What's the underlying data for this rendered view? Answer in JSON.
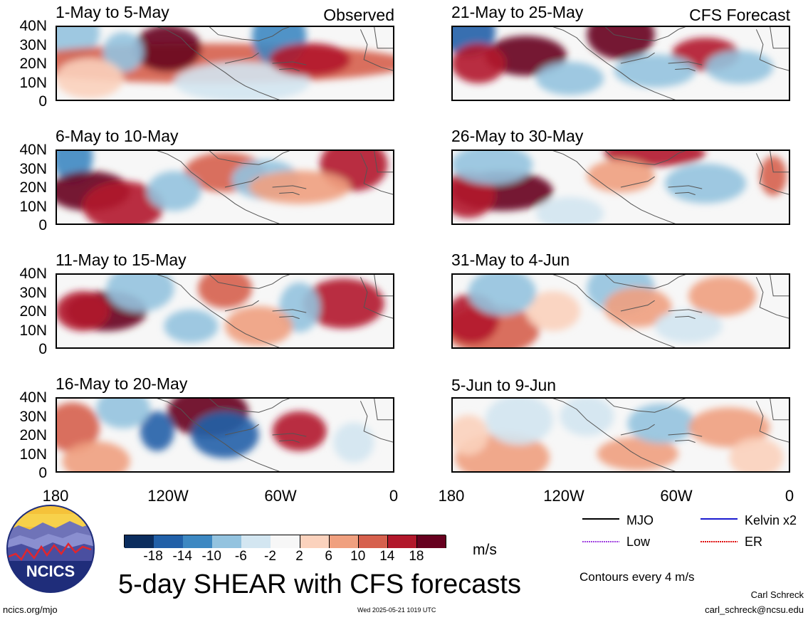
{
  "figure": {
    "main_title": "5-day SHEAR with CFS forecasts",
    "observed_tag": "Observed",
    "forecast_tag": "CFS Forecast",
    "units": "m/s",
    "contour_note": "Contours every 4 m/s",
    "author": "Carl Schreck",
    "email": "carl_schreck@ncsu.edu",
    "website": "ncics.org/mjo",
    "timestamp": "Wed 2025-05-21 1019 UTC",
    "logo_text": "NCICS"
  },
  "legend": {
    "items": [
      {
        "label": "MJO",
        "color": "#000000"
      },
      {
        "label": "Kelvin x2",
        "color": "#1a1ad0"
      },
      {
        "label": "Low",
        "color": "#a040e0"
      },
      {
        "label": "ER",
        "color": "#e01010"
      }
    ]
  },
  "colorbar": {
    "labels": [
      "-18",
      "-14",
      "-10",
      "-6",
      "-2",
      "2",
      "6",
      "10",
      "14",
      "18"
    ],
    "colors": [
      "#0b2d5e",
      "#2160a8",
      "#3d88c2",
      "#93c3df",
      "#d3e6f1",
      "#f7f7f7",
      "#fbd2bd",
      "#f0a07f",
      "#d6604d",
      "#b2182b",
      "#67001f"
    ]
  },
  "chart_data": {
    "type": "heatmap",
    "variable": "5-day SHEAR",
    "units": "m/s",
    "lat_ticks": [
      "40N",
      "30N",
      "20N",
      "10N",
      "0"
    ],
    "lon_ticks": [
      "180",
      "120W",
      "60W",
      "0"
    ],
    "ylim": [
      0,
      40
    ],
    "xlim": [
      -180,
      0
    ],
    "panels": [
      {
        "period": "1-May to 5-May",
        "type": "Observed"
      },
      {
        "period": "6-May to 10-May",
        "type": "Observed"
      },
      {
        "period": "11-May to 15-May",
        "type": "Observed"
      },
      {
        "period": "16-May to 20-May",
        "type": "Observed"
      },
      {
        "period": "21-May to 25-May",
        "type": "CFS Forecast"
      },
      {
        "period": "26-May to 30-May",
        "type": "CFS Forecast"
      },
      {
        "period": "31-May to 4-Jun",
        "type": "CFS Forecast"
      },
      {
        "period": "5-Jun to 9-Jun",
        "type": "CFS Forecast"
      }
    ]
  }
}
